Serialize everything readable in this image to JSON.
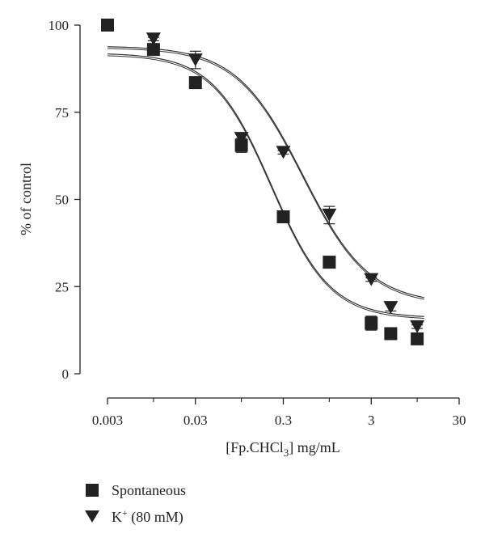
{
  "chart_data": {
    "type": "scatter",
    "title": "",
    "xlabel": {
      "pre": "[Fp.CHCl",
      "sub": "3",
      "post": "] mg/mL"
    },
    "ylabel": "% of control",
    "xscale": "log",
    "xlim": [
      0.003,
      30
    ],
    "ylim": [
      0,
      100
    ],
    "xticks": [
      {
        "value": 0.003,
        "label": "0.003"
      },
      {
        "value": 0.03,
        "label": "0.03"
      },
      {
        "value": 0.3,
        "label": "0.3"
      },
      {
        "value": 3,
        "label": "3"
      },
      {
        "value": 30,
        "label": "30"
      }
    ],
    "xticks_minor": [
      0.01,
      0.1,
      1,
      10
    ],
    "yticks": [
      {
        "value": 0,
        "label": "0"
      },
      {
        "value": 25,
        "label": "25"
      },
      {
        "value": 50,
        "label": "50"
      },
      {
        "value": 75,
        "label": "75"
      },
      {
        "value": 100,
        "label": "100"
      }
    ],
    "grid": false,
    "legend_position": "bottom-left",
    "series": [
      {
        "name": "Spontaneous",
        "marker": "square",
        "color": "#222222",
        "points": [
          {
            "x": 0.003,
            "y": 100,
            "err": 0
          },
          {
            "x": 0.01,
            "y": 93,
            "err": 1
          },
          {
            "x": 0.03,
            "y": 83.5,
            "err": 1.5
          },
          {
            "x": 0.1,
            "y": 65.5,
            "err": 2
          },
          {
            "x": 0.3,
            "y": 45,
            "err": 1
          },
          {
            "x": 1,
            "y": 32,
            "err": 1
          },
          {
            "x": 3,
            "y": 14.5,
            "err": 2
          },
          {
            "x": 5,
            "y": 11.5,
            "err": 0.5
          },
          {
            "x": 10,
            "y": 10,
            "err": 0.5
          }
        ],
        "fit": {
          "top": 92,
          "bottom": 16,
          "ec50": 0.22,
          "hill": 1.3
        }
      },
      {
        "name": "K+ (80 mM)",
        "marker": "triangle-down",
        "color": "#222222",
        "points": [
          {
            "x": 0.01,
            "y": 96,
            "err": 0.5
          },
          {
            "x": 0.03,
            "y": 90,
            "err": 2.5
          },
          {
            "x": 0.1,
            "y": 67.5,
            "err": 1
          },
          {
            "x": 0.3,
            "y": 63.5,
            "err": 0.5
          },
          {
            "x": 1,
            "y": 45.5,
            "err": 2.5
          },
          {
            "x": 3,
            "y": 27,
            "err": 0.5
          },
          {
            "x": 5,
            "y": 19,
            "err": 1
          },
          {
            "x": 10,
            "y": 13.5,
            "err": 0.5
          }
        ],
        "fit": {
          "top": 94,
          "bottom": 20,
          "ec50": 0.5,
          "hill": 1.15
        }
      }
    ]
  },
  "legend": [
    {
      "marker": "square",
      "label": "Spontaneous"
    },
    {
      "marker": "triangle-down",
      "label_main": "K",
      "label_sup": "+",
      "label_rest": " (80 mM)"
    }
  ]
}
